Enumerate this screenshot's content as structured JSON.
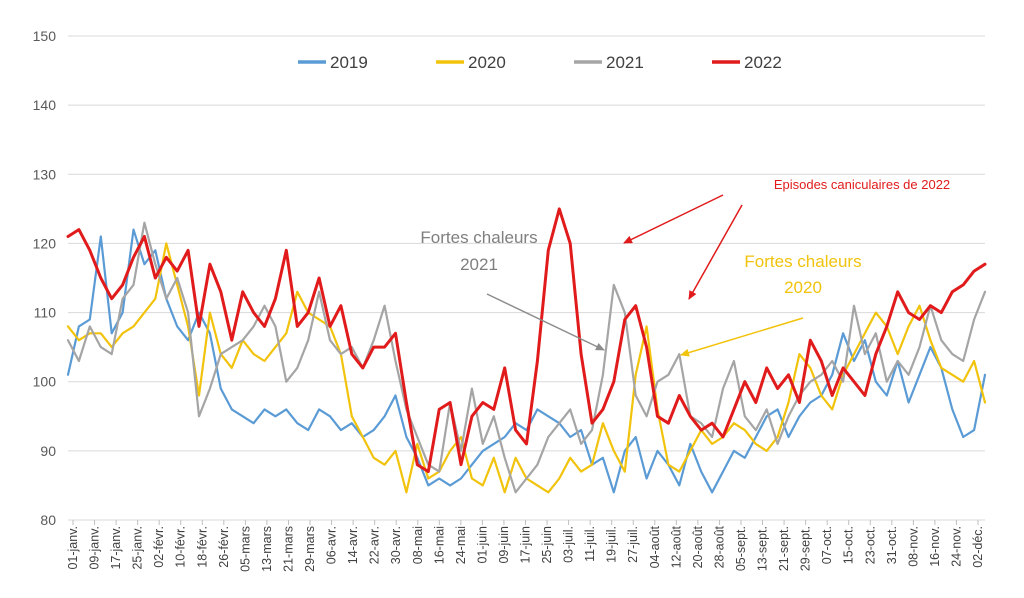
{
  "chart_data": {
    "type": "line",
    "title": "",
    "xlabel": "",
    "ylabel": "",
    "ylim": [
      80,
      150
    ],
    "yticks": [
      80,
      90,
      100,
      110,
      120,
      130,
      140,
      150
    ],
    "grid": true,
    "legend": "top-center",
    "x_tick_labels": [
      "01-janv.",
      "09-janv.",
      "17-janv.",
      "25-janv.",
      "02-févr.",
      "10-févr.",
      "18-févr.",
      "26-févr.",
      "05-mars",
      "13-mars",
      "21-mars",
      "29-mars",
      "06-avr.",
      "14-avr.",
      "22-avr.",
      "30-avr.",
      "08-mai",
      "16-mai",
      "24-mai",
      "01-juin",
      "09-juin",
      "17-juin",
      "25-juin",
      "03-juil.",
      "11-juil.",
      "19-juil.",
      "27-juil.",
      "04-août",
      "12-août",
      "20-août",
      "28-août",
      "05-sept.",
      "13-sept.",
      "21-sept.",
      "29-sept.",
      "07-oct.",
      "15-oct.",
      "23-oct.",
      "31-oct.",
      "08-nov.",
      "16-nov.",
      "24-nov.",
      "02-déc."
    ],
    "series": [
      {
        "name": "2019",
        "color": "#5b9bd5",
        "values": [
          101,
          108,
          109,
          121,
          107,
          110,
          122,
          117,
          119,
          112,
          108,
          106,
          110,
          107,
          99,
          96,
          95,
          94,
          96,
          95,
          96,
          94,
          93,
          96,
          95,
          93,
          94,
          92,
          93,
          95,
          98,
          92,
          89,
          85,
          86,
          85,
          86,
          88,
          90,
          91,
          92,
          94,
          93,
          96,
          95,
          94,
          92,
          93,
          88,
          89,
          84,
          90,
          92,
          86,
          90,
          88,
          85,
          91,
          87,
          84,
          87,
          90,
          89,
          92,
          95,
          96,
          92,
          95,
          97,
          98,
          101,
          107,
          103,
          106,
          100,
          98,
          103,
          97,
          101,
          105,
          102,
          96,
          92,
          93,
          101
        ]
      },
      {
        "name": "2020",
        "color": "#f2c30c",
        "values": [
          108,
          106,
          107,
          107,
          105,
          107,
          108,
          110,
          112,
          120,
          114,
          108,
          98,
          110,
          104,
          102,
          106,
          104,
          103,
          105,
          107,
          113,
          110,
          109,
          108,
          104,
          95,
          92,
          89,
          88,
          90,
          84,
          91,
          86,
          87,
          90,
          92,
          86,
          85,
          89,
          84,
          89,
          86,
          85,
          84,
          86,
          89,
          87,
          88,
          94,
          90,
          87,
          101,
          108,
          96,
          88,
          87,
          90,
          93,
          91,
          92,
          94,
          93,
          91,
          90,
          92,
          97,
          104,
          102,
          98,
          96,
          101,
          104,
          107,
          110,
          108,
          104,
          108,
          111,
          106,
          102,
          101,
          100,
          103,
          97
        ]
      },
      {
        "name": "2021",
        "color": "#a5a5a5",
        "values": [
          106,
          103,
          108,
          105,
          104,
          112,
          114,
          123,
          117,
          112,
          115,
          110,
          95,
          99,
          104,
          105,
          106,
          108,
          111,
          108,
          100,
          102,
          106,
          113,
          106,
          104,
          105,
          102,
          106,
          111,
          103,
          96,
          92,
          88,
          87,
          97,
          90,
          99,
          91,
          95,
          89,
          84,
          86,
          88,
          92,
          94,
          96,
          91,
          93,
          101,
          114,
          110,
          98,
          95,
          100,
          101,
          104,
          95,
          94,
          92,
          99,
          103,
          95,
          93,
          96,
          91,
          95,
          98,
          100,
          101,
          103,
          100,
          111,
          104,
          107,
          100,
          103,
          101,
          105,
          111,
          106,
          104,
          103,
          109,
          113
        ]
      },
      {
        "name": "2022",
        "color": "#e11b1b",
        "values": [
          121,
          122,
          119,
          115,
          112,
          114,
          118,
          121,
          115,
          118,
          116,
          119,
          108,
          117,
          113,
          106,
          113,
          110,
          108,
          112,
          119,
          108,
          110,
          115,
          108,
          111,
          104,
          102,
          105,
          105,
          107,
          97,
          88,
          87,
          96,
          97,
          88,
          95,
          97,
          96,
          102,
          93,
          91,
          103,
          119,
          125,
          120,
          104,
          94,
          96,
          100,
          109,
          111,
          105,
          95,
          94,
          98,
          95,
          93,
          94,
          92,
          96,
          100,
          97,
          102,
          99,
          101,
          97,
          106,
          103,
          98,
          102,
          100,
          98,
          104,
          108,
          113,
          110,
          109,
          111,
          110,
          113,
          114,
          116,
          117
        ]
      }
    ],
    "annotations": {
      "fortes_2021_line1": "Fortes chaleurs",
      "fortes_2021_line2": "2021",
      "episodes_2022": "Episodes caniculaires de 2022",
      "fortes_2020_line1": "Fortes chaleurs",
      "fortes_2020_line2": "2020"
    }
  }
}
